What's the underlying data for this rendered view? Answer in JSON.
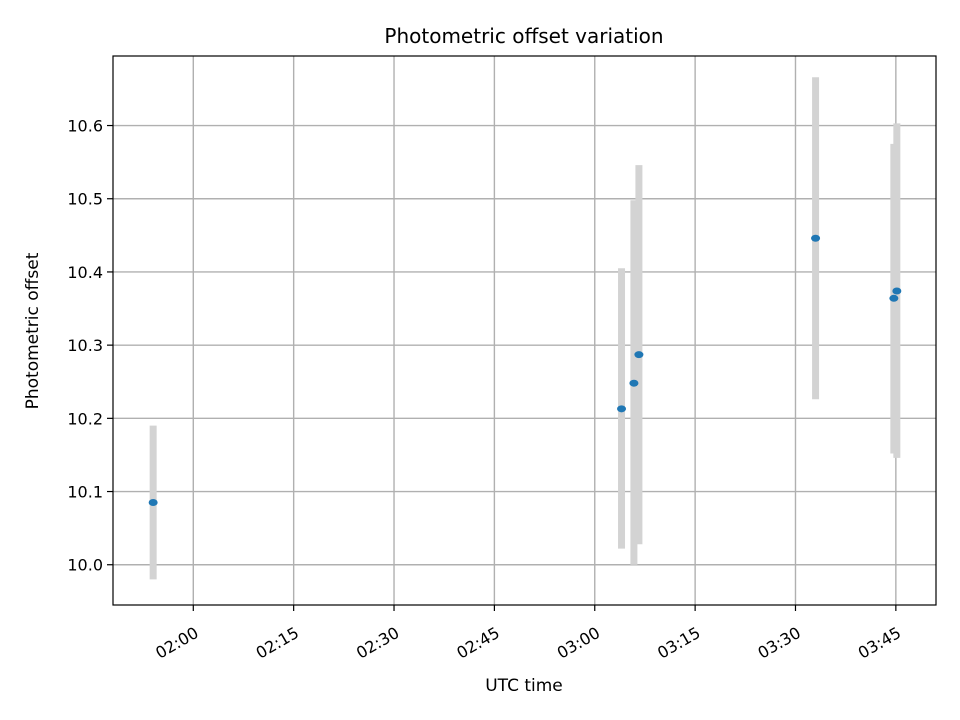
{
  "chart_data": {
    "type": "scatter",
    "title": "Photometric offset variation",
    "xlabel": "UTC time",
    "ylabel": "Photometric offset",
    "xlim": [
      "01:48",
      "03:51"
    ],
    "ylim": [
      9.945,
      10.695
    ],
    "x_ticks": [
      "02:00",
      "02:15",
      "02:30",
      "02:45",
      "03:00",
      "03:15",
      "03:30",
      "03:45"
    ],
    "y_ticks": [
      10.0,
      10.1,
      10.2,
      10.3,
      10.4,
      10.5,
      10.6
    ],
    "y_tick_labels": [
      "10.0",
      "10.1",
      "10.2",
      "10.3",
      "10.4",
      "10.5",
      "10.6"
    ],
    "grid": true,
    "point_color": "#1f77b4",
    "errorbar_color": "#d3d3d3",
    "points": [
      {
        "x": "01:54",
        "y": 10.085,
        "yerr_low": 9.98,
        "yerr_high": 10.19
      },
      {
        "x": "03:04",
        "y": 10.213,
        "yerr_low": 10.022,
        "yerr_high": 10.405
      },
      {
        "x": "03:06",
        "y": 10.248,
        "yerr_low": 10.0,
        "yerr_high": 10.498
      },
      {
        "x": "03:06",
        "y": 10.287,
        "yerr_low": 10.028,
        "yerr_high": 10.546
      },
      {
        "x": "03:33",
        "y": 10.446,
        "yerr_low": 10.226,
        "yerr_high": 10.666
      },
      {
        "x": "03:45",
        "y": 10.364,
        "yerr_low": 10.152,
        "yerr_high": 10.575
      },
      {
        "x": "03:45",
        "y": 10.374,
        "yerr_low": 10.146,
        "yerr_high": 10.603
      }
    ]
  }
}
